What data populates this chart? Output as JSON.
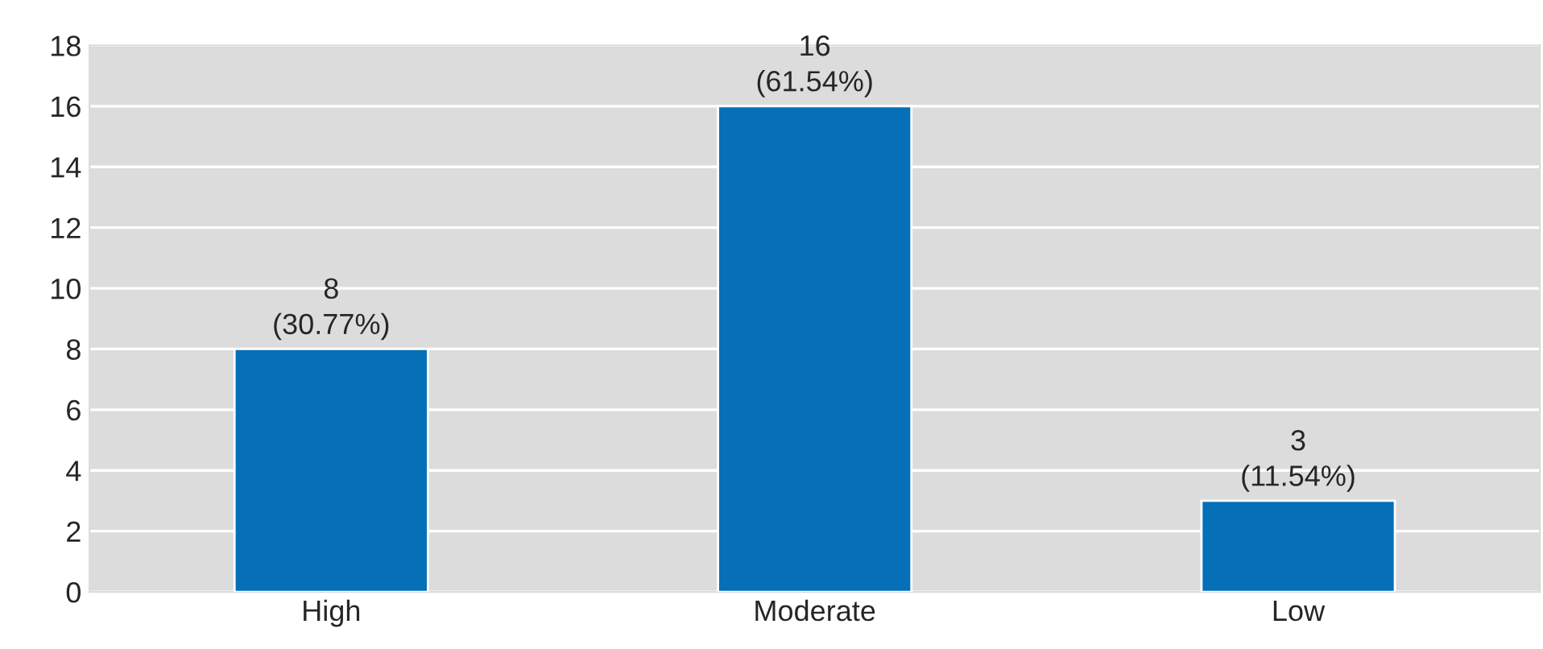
{
  "chart_data": {
    "type": "bar",
    "categories": [
      "High",
      "Moderate",
      "Low"
    ],
    "values": [
      8,
      16,
      3
    ],
    "value_labels": [
      "8\n(30.77%)",
      "16\n(61.54%)",
      "3\n(11.54%)"
    ],
    "color": "#0570b8",
    "ylim": [
      0,
      18
    ],
    "yticks": [
      0,
      2,
      4,
      6,
      8,
      10,
      12,
      14,
      16,
      18
    ],
    "grid": "y",
    "legend": false
  }
}
